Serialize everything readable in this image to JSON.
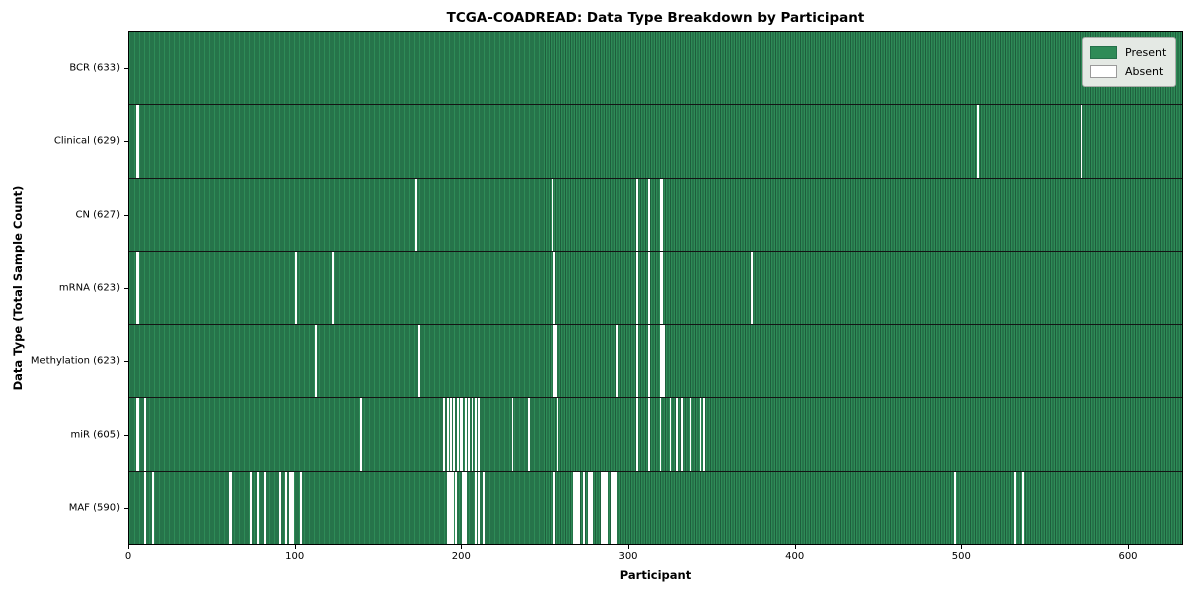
{
  "chart_data": {
    "type": "heatmap",
    "title": "TCGA-COADREAD: Data Type Breakdown by Participant",
    "xlabel": "Participant",
    "ylabel": "Data Type (Total Sample Count)",
    "n_participants": 633,
    "x_ticks": [
      0,
      100,
      200,
      300,
      400,
      500,
      600
    ],
    "grid": false,
    "legend_position": "upper right",
    "legend": [
      {
        "label": "Present",
        "color": "#2e8b57"
      },
      {
        "label": "Absent",
        "color": "#ffffff"
      }
    ],
    "colors": {
      "present_light": "#2e8b57",
      "present_dark": "#1e5e3c",
      "absent": "#ffffff"
    },
    "rows": [
      {
        "label": "BCR (633)",
        "data_type": "BCR",
        "present_count": 633,
        "absent_participants": []
      },
      {
        "label": "Clinical (629)",
        "data_type": "Clinical",
        "present_count": 629,
        "absent_participants": [
          4,
          5,
          510,
          572
        ]
      },
      {
        "label": "CN (627)",
        "data_type": "CN",
        "present_count": 627,
        "absent_participants": [
          172,
          254,
          305,
          312,
          319,
          320
        ]
      },
      {
        "label": "mRNA (623)",
        "data_type": "mRNA",
        "present_count": 623,
        "absent_participants": [
          4,
          5,
          100,
          122,
          255,
          305,
          312,
          319,
          320,
          374
        ]
      },
      {
        "label": "Methylation (623)",
        "data_type": "Methylation",
        "present_count": 623,
        "absent_participants": [
          112,
          174,
          255,
          256,
          293,
          305,
          312,
          319,
          320,
          321
        ]
      },
      {
        "label": "miR (605)",
        "data_type": "miR",
        "present_count": 605,
        "absent_participants": [
          4,
          5,
          9,
          139,
          189,
          191,
          193,
          195,
          197,
          199,
          200,
          202,
          204,
          206,
          208,
          210,
          230,
          240,
          257,
          305,
          312,
          319,
          325,
          329,
          332,
          337,
          343,
          345
        ]
      },
      {
        "label": "MAF (590)",
        "data_type": "MAF",
        "present_count": 590,
        "absent_participants": [
          9,
          14,
          60,
          61,
          73,
          77,
          81,
          90,
          94,
          96,
          97,
          98,
          103,
          191,
          192,
          193,
          194,
          196,
          200,
          201,
          202,
          208,
          210,
          213,
          255,
          267,
          268,
          269,
          270,
          273,
          276,
          277,
          278,
          284,
          285,
          286,
          287,
          290,
          291,
          292,
          496,
          532,
          537
        ]
      }
    ]
  }
}
